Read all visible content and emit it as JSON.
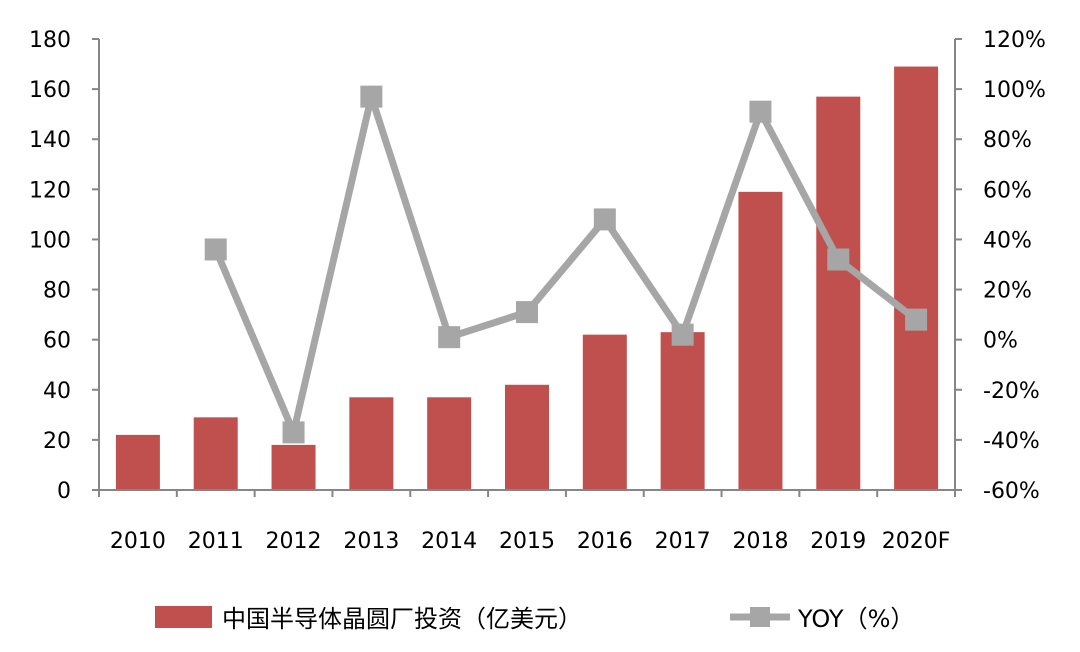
{
  "chart_data": {
    "type": "bar",
    "categories": [
      "2010",
      "2011",
      "2012",
      "2013",
      "2014",
      "2015",
      "2016",
      "2017",
      "2018",
      "2019",
      "2020F"
    ],
    "series": [
      {
        "name": "中国半导体晶圆厂投资（亿美元）",
        "type": "bar",
        "axis": "left",
        "color": "#c0504d",
        "values": [
          22,
          29,
          18,
          37,
          37,
          42,
          62,
          63,
          119,
          157,
          169
        ]
      },
      {
        "name": "YOY（%）",
        "type": "line",
        "axis": "right",
        "color": "#a6a6a6",
        "values": [
          null,
          36,
          -37,
          97,
          1,
          11,
          48,
          2,
          91,
          32,
          8
        ]
      }
    ],
    "y_left": {
      "min": 0,
      "max": 180,
      "step": 20,
      "tick_labels": [
        "0",
        "20",
        "40",
        "60",
        "80",
        "100",
        "120",
        "140",
        "160",
        "180"
      ]
    },
    "y_right": {
      "min": -60,
      "max": 120,
      "step": 20,
      "tick_labels": [
        "-60%",
        "-40%",
        "-20%",
        "0%",
        "20%",
        "40%",
        "60%",
        "80%",
        "100%",
        "120%"
      ]
    },
    "grid": false,
    "legend_position": "bottom"
  }
}
